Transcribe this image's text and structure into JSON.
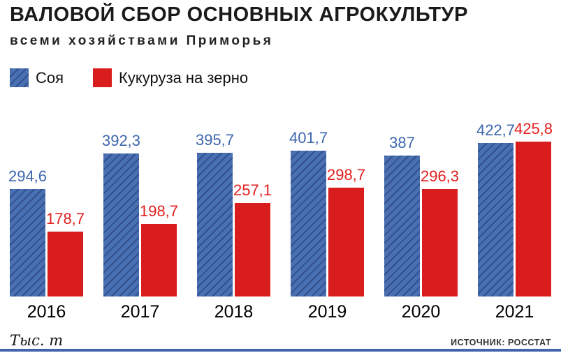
{
  "header": {
    "title": "ВАЛОВОЙ СБОР ОСНОВНЫХ АГРОКУЛЬТУР",
    "subtitle": "всеми хозяйствами Приморья"
  },
  "legend": [
    {
      "label": "Соя",
      "color": "#4a70b4",
      "hatched": true
    },
    {
      "label": "Кукуруза на зерно",
      "color": "#d91c1c",
      "hatched": false
    }
  ],
  "footer": {
    "unit": "Тыс. т",
    "source": "ИСТОЧНИК: РОССТАТ"
  },
  "colors": {
    "soy_bar": "#4a70b4",
    "corn_bar": "#d91c1c",
    "soy_label": "#3d66ae",
    "corn_label": "#e31e1e",
    "accent_line": "#4065ad"
  },
  "chart_data": {
    "type": "bar",
    "title": "Валовой сбор основных агрокультур всеми хозяйствами Приморья",
    "categories": [
      "2016",
      "2017",
      "2018",
      "2019",
      "2020",
      "2021"
    ],
    "series": [
      {
        "name": "Соя",
        "values": [
          294.6,
          392.3,
          395.7,
          401.7,
          387,
          422.7
        ],
        "labels": [
          "294,6",
          "392,3",
          "395,7",
          "401,7",
          "387",
          "422,7"
        ],
        "color": "#4a70b4",
        "label_color": "#3d66ae",
        "hatched": true
      },
      {
        "name": "Кукуруза на зерно",
        "values": [
          178.7,
          198.7,
          257.1,
          298.7,
          296.3,
          425.8
        ],
        "labels": [
          "178,7",
          "198,7",
          "257,1",
          "298,7",
          "296,3",
          "425,8"
        ],
        "color": "#d91c1c",
        "label_color": "#e31e1e",
        "hatched": false
      }
    ],
    "xlabel": "",
    "ylabel": "Тыс. т",
    "ylim": [
      0,
      450
    ],
    "grid": false,
    "legend_position": "top-left"
  }
}
